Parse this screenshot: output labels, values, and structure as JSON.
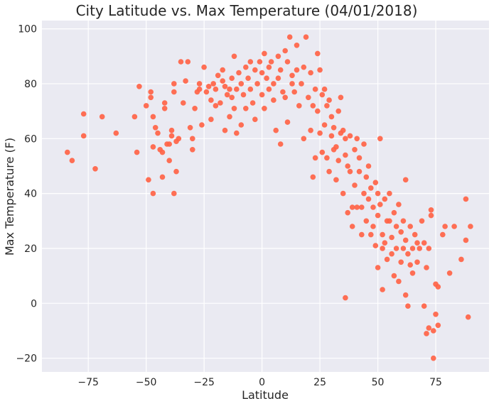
{
  "chart_data": {
    "type": "scatter",
    "title": "City Latitude vs. Max Temperature (04/01/2018)",
    "xlabel": "Latitude",
    "ylabel": "Max Temperature (F)",
    "xlim": [
      -95,
      98
    ],
    "ylim": [
      -25,
      103
    ],
    "xticks": [
      -75,
      -50,
      -25,
      0,
      25,
      50,
      75
    ],
    "yticks": [
      -20,
      0,
      20,
      40,
      60,
      80,
      100
    ],
    "xtick_labels": [
      "−75",
      "−50",
      "−25",
      "0",
      "25",
      "50",
      "75"
    ],
    "ytick_labels": [
      "−20",
      "0",
      "20",
      "40",
      "60",
      "80",
      "100"
    ],
    "grid": true,
    "plot_background": "#eaeaf2",
    "grid_color": "#ffffff",
    "marker_color": "#ff6347",
    "points": [
      [
        -84,
        55
      ],
      [
        -82,
        52
      ],
      [
        -77,
        69
      ],
      [
        -77,
        61
      ],
      [
        -72,
        49
      ],
      [
        -69,
        68
      ],
      [
        -63,
        62
      ],
      [
        -55,
        68
      ],
      [
        -54,
        55
      ],
      [
        -53,
        79
      ],
      [
        -50,
        72
      ],
      [
        -49,
        45
      ],
      [
        -48,
        77
      ],
      [
        -48,
        75
      ],
      [
        -47,
        57
      ],
      [
        -47,
        68
      ],
      [
        -47,
        40
      ],
      [
        -46,
        64
      ],
      [
        -45,
        62
      ],
      [
        -44,
        56
      ],
      [
        -43,
        46
      ],
      [
        -43,
        55
      ],
      [
        -42,
        71
      ],
      [
        -42,
        73
      ],
      [
        -41,
        58
      ],
      [
        -40,
        58
      ],
      [
        -40,
        52
      ],
      [
        -39,
        63
      ],
      [
        -39,
        61
      ],
      [
        -38,
        77
      ],
      [
        -38,
        80
      ],
      [
        -38,
        40
      ],
      [
        -37,
        59
      ],
      [
        -37,
        48
      ],
      [
        -36,
        60
      ],
      [
        -35,
        88
      ],
      [
        -34,
        73
      ],
      [
        -33,
        81
      ],
      [
        -32,
        88
      ],
      [
        -31,
        64
      ],
      [
        -30,
        56
      ],
      [
        -30,
        60
      ],
      [
        -29,
        71
      ],
      [
        -28,
        77
      ],
      [
        -27,
        80
      ],
      [
        -27,
        78
      ],
      [
        -26,
        65
      ],
      [
        -25,
        86
      ],
      [
        -24,
        77
      ],
      [
        -23,
        79
      ],
      [
        -22,
        74
      ],
      [
        -22,
        67
      ],
      [
        -21,
        80
      ],
      [
        -20,
        78
      ],
      [
        -20,
        72
      ],
      [
        -19,
        83
      ],
      [
        -18,
        73
      ],
      [
        -17,
        81
      ],
      [
        -17,
        85
      ],
      [
        -16,
        79
      ],
      [
        -16,
        63
      ],
      [
        -15,
        76
      ],
      [
        -14,
        78
      ],
      [
        -14,
        68
      ],
      [
        -13,
        82
      ],
      [
        -13,
        75
      ],
      [
        -12,
        90
      ],
      [
        -12,
        71
      ],
      [
        -11,
        62
      ],
      [
        -11,
        78
      ],
      [
        -10,
        84
      ],
      [
        -9,
        80
      ],
      [
        -9,
        65
      ],
      [
        -8,
        76
      ],
      [
        -7,
        86
      ],
      [
        -7,
        71
      ],
      [
        -6,
        82
      ],
      [
        -5,
        88
      ],
      [
        -5,
        78
      ],
      [
        -4,
        73
      ],
      [
        -3,
        85
      ],
      [
        -3,
        67
      ],
      [
        -2,
        80
      ],
      [
        -1,
        88
      ],
      [
        0,
        84
      ],
      [
        0,
        76
      ],
      [
        1,
        91
      ],
      [
        1,
        71
      ],
      [
        2,
        82
      ],
      [
        3,
        78
      ],
      [
        3,
        86
      ],
      [
        4,
        88
      ],
      [
        5,
        80
      ],
      [
        5,
        74
      ],
      [
        6,
        63
      ],
      [
        7,
        82
      ],
      [
        7,
        90
      ],
      [
        8,
        85
      ],
      [
        8,
        58
      ],
      [
        9,
        77
      ],
      [
        10,
        92
      ],
      [
        10,
        75
      ],
      [
        11,
        88
      ],
      [
        11,
        66
      ],
      [
        12,
        97
      ],
      [
        13,
        80
      ],
      [
        13,
        83
      ],
      [
        14,
        77
      ],
      [
        15,
        94
      ],
      [
        15,
        85
      ],
      [
        16,
        72
      ],
      [
        17,
        80
      ],
      [
        18,
        86
      ],
      [
        18,
        60
      ],
      [
        19,
        97
      ],
      [
        20,
        75
      ],
      [
        21,
        84
      ],
      [
        21,
        63
      ],
      [
        22,
        72
      ],
      [
        22,
        46
      ],
      [
        23,
        53
      ],
      [
        23,
        78
      ],
      [
        24,
        70
      ],
      [
        24,
        91
      ],
      [
        25,
        62
      ],
      [
        25,
        85
      ],
      [
        26,
        76
      ],
      [
        26,
        55
      ],
      [
        27,
        78
      ],
      [
        27,
        65
      ],
      [
        28,
        72
      ],
      [
        28,
        53
      ],
      [
        29,
        74
      ],
      [
        29,
        48
      ],
      [
        30,
        68
      ],
      [
        30,
        61
      ],
      [
        31,
        64
      ],
      [
        31,
        56
      ],
      [
        32,
        57
      ],
      [
        32,
        45
      ],
      [
        33,
        70
      ],
      [
        33,
        52
      ],
      [
        34,
        75
      ],
      [
        34,
        62
      ],
      [
        35,
        63
      ],
      [
        35,
        40
      ],
      [
        36,
        60
      ],
      [
        36,
        54
      ],
      [
        36,
        2
      ],
      [
        37,
        50
      ],
      [
        37,
        33
      ],
      [
        38,
        61
      ],
      [
        38,
        48
      ],
      [
        39,
        35
      ],
      [
        39,
        28
      ],
      [
        40,
        56
      ],
      [
        40,
        43
      ],
      [
        41,
        60
      ],
      [
        41,
        35
      ],
      [
        42,
        48
      ],
      [
        42,
        53
      ],
      [
        43,
        35
      ],
      [
        43,
        25
      ],
      [
        44,
        40
      ],
      [
        44,
        58
      ],
      [
        45,
        46
      ],
      [
        45,
        30
      ],
      [
        46,
        38
      ],
      [
        46,
        50
      ],
      [
        47,
        25
      ],
      [
        47,
        42
      ],
      [
        48,
        35
      ],
      [
        48,
        28
      ],
      [
        49,
        44
      ],
      [
        49,
        21
      ],
      [
        50,
        40
      ],
      [
        50,
        32
      ],
      [
        50,
        13
      ],
      [
        51,
        60
      ],
      [
        51,
        36
      ],
      [
        52,
        25
      ],
      [
        52,
        20
      ],
      [
        52,
        5
      ],
      [
        53,
        38
      ],
      [
        53,
        22
      ],
      [
        54,
        30
      ],
      [
        54,
        16
      ],
      [
        55,
        40
      ],
      [
        55,
        30
      ],
      [
        56,
        24
      ],
      [
        56,
        18
      ],
      [
        57,
        33
      ],
      [
        57,
        10
      ],
      [
        58,
        28
      ],
      [
        58,
        20
      ],
      [
        59,
        36
      ],
      [
        59,
        8
      ],
      [
        60,
        26
      ],
      [
        60,
        15
      ],
      [
        61,
        30
      ],
      [
        61,
        20
      ],
      [
        62,
        45
      ],
      [
        62,
        23
      ],
      [
        62,
        3
      ],
      [
        63,
        18
      ],
      [
        63,
        -1
      ],
      [
        64,
        28
      ],
      [
        64,
        14
      ],
      [
        65,
        20
      ],
      [
        65,
        11
      ],
      [
        66,
        25
      ],
      [
        67,
        22
      ],
      [
        67,
        15
      ],
      [
        68,
        20
      ],
      [
        69,
        30
      ],
      [
        70,
        22
      ],
      [
        70,
        -1
      ],
      [
        71,
        13
      ],
      [
        71,
        -11
      ],
      [
        72,
        20
      ],
      [
        72,
        -9
      ],
      [
        73,
        32
      ],
      [
        73,
        34
      ],
      [
        74,
        -20
      ],
      [
        74,
        -10
      ],
      [
        75,
        7
      ],
      [
        75,
        -4
      ],
      [
        76,
        6
      ],
      [
        76,
        -8
      ],
      [
        78,
        25
      ],
      [
        79,
        28
      ],
      [
        81,
        11
      ],
      [
        83,
        28
      ],
      [
        86,
        16
      ],
      [
        88,
        38
      ],
      [
        88,
        23
      ],
      [
        89,
        -5
      ],
      [
        90,
        28
      ]
    ]
  }
}
